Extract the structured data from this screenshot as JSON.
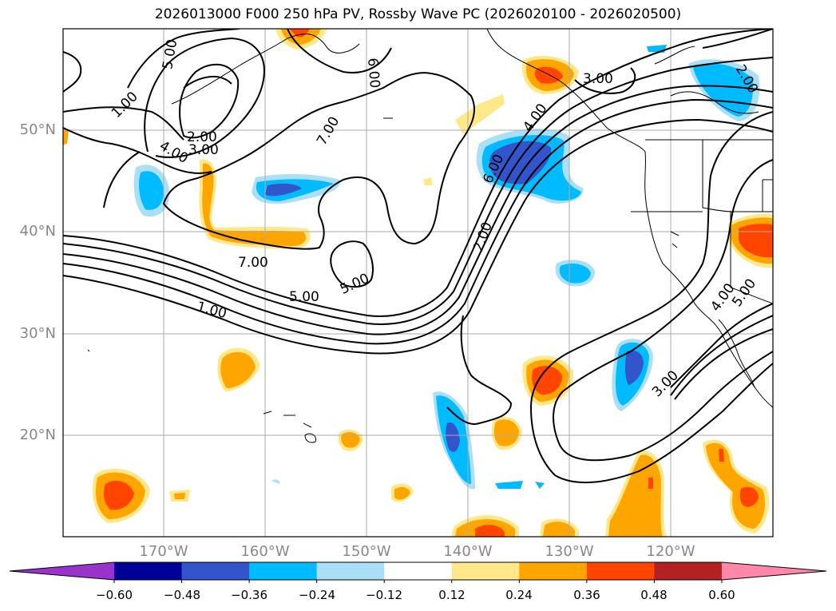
{
  "title": "2026013000 F000 250 hPa PV, Rossby Wave PC (2026020100 - 2026020500)",
  "lon_labels": [
    "170°W",
    "160°W",
    "150°W",
    "140°W",
    "130°W",
    "120°W"
  ],
  "lat_labels": [
    "50°N",
    "40°N",
    "30°N",
    "20°N"
  ],
  "contour_labels": [
    "5.00",
    "6.00",
    "1.00",
    "2.00",
    "3.00",
    "4.00",
    "7.00",
    "7.00",
    "5.00",
    "5.00",
    "1.00",
    "2.00",
    "6.00",
    "4.00",
    "3.00",
    "2.00",
    "4.00",
    "5.00",
    "3.00"
  ],
  "colorbar": {
    "ticks": [
      "−0.60",
      "−0.48",
      "−0.36",
      "−0.24",
      "−0.12",
      "0.12",
      "0.24",
      "0.36",
      "0.48",
      "0.60"
    ],
    "colors": [
      "#9933cc",
      "#000099",
      "#3355cc",
      "#00bbff",
      "#aadff8",
      "#ffffff",
      "#ffe88a",
      "#ffa500",
      "#ff4500",
      "#b22222",
      "#ff88aa"
    ]
  },
  "shading_colors": {
    "light_blue": "#aadff8",
    "blue": "#00bbff",
    "dark_blue": "#3355cc",
    "yellow": "#ffe88a",
    "orange": "#ffa500",
    "red_orange": "#ff4500"
  }
}
